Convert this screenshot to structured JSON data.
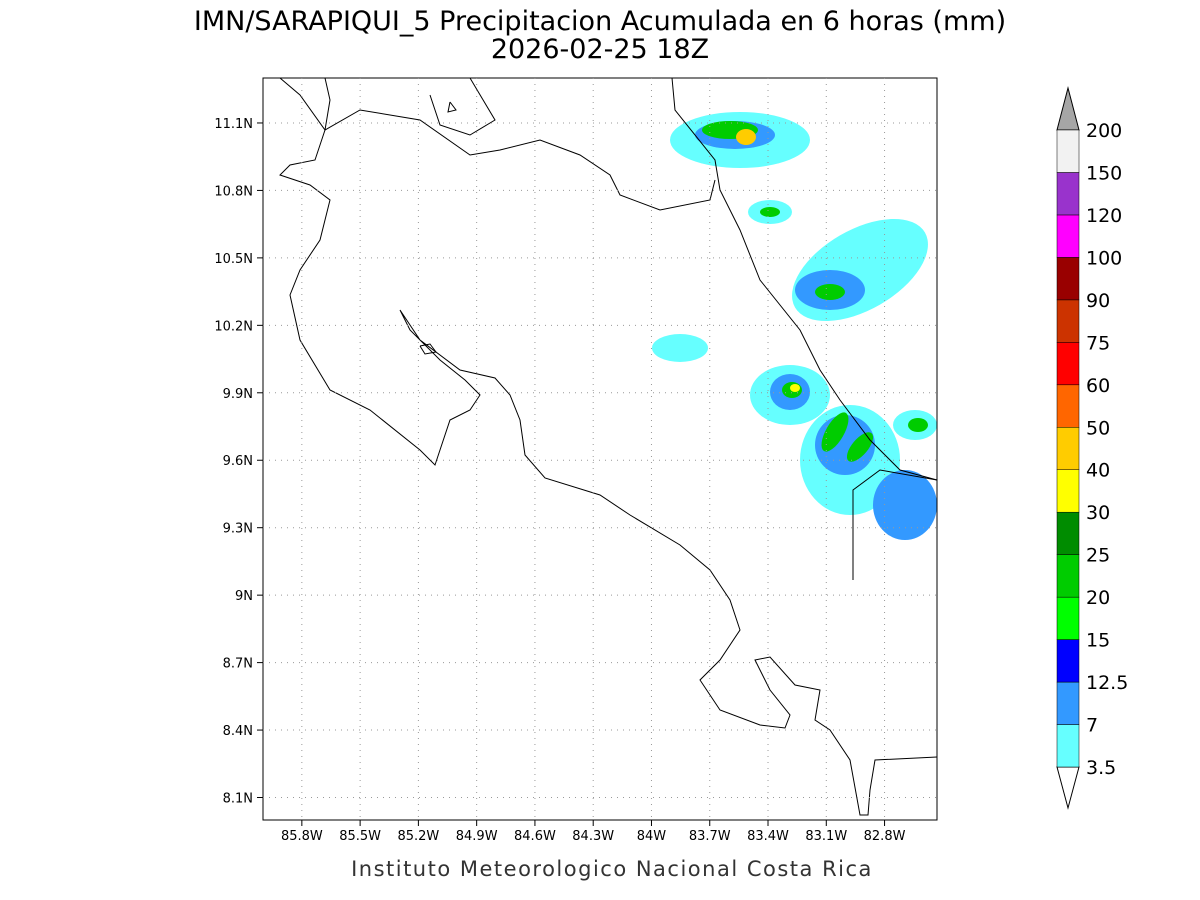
{
  "title": "IMN/SARAPIQUI_5 Precipitacion Acumulada en 6 horas (mm)",
  "subtitle": "2026-02-25 18Z",
  "map": {
    "xlim": [
      -86.0,
      -82.53
    ],
    "ylim": [
      8.0,
      11.3
    ],
    "xticks": [
      {
        "value": -85.8,
        "label": "85.8W"
      },
      {
        "value": -85.5,
        "label": "85.5W"
      },
      {
        "value": -85.2,
        "label": "85.2W"
      },
      {
        "value": -84.9,
        "label": "84.9W"
      },
      {
        "value": -84.6,
        "label": "84.6W"
      },
      {
        "value": -84.3,
        "label": "84.3W"
      },
      {
        "value": -84.0,
        "label": "84W"
      },
      {
        "value": -83.7,
        "label": "83.7W"
      },
      {
        "value": -83.4,
        "label": "83.4W"
      },
      {
        "value": -83.1,
        "label": "83.1W"
      },
      {
        "value": -82.8,
        "label": "82.8W"
      }
    ],
    "yticks": [
      {
        "value": 11.1,
        "label": "11.1N"
      },
      {
        "value": 10.8,
        "label": "10.8N"
      },
      {
        "value": 10.5,
        "label": "10.5N"
      },
      {
        "value": 10.2,
        "label": "10.2N"
      },
      {
        "value": 9.9,
        "label": "9.9N"
      },
      {
        "value": 9.6,
        "label": "9.6N"
      },
      {
        "value": 9.3,
        "label": "9.3N"
      },
      {
        "value": 9.0,
        "label": "9N"
      },
      {
        "value": 8.7,
        "label": "8.7N"
      },
      {
        "value": 8.4,
        "label": "8.4N"
      },
      {
        "value": 8.1,
        "label": "8.1N"
      }
    ],
    "grid": true
  },
  "colorbar": {
    "levels": [
      3.5,
      7,
      12.5,
      15,
      20,
      25,
      30,
      40,
      50,
      60,
      75,
      90,
      100,
      120,
      150,
      200
    ],
    "colors": [
      "#66ffff",
      "#3399ff",
      "#0000ff",
      "#00ff00",
      "#00cc00",
      "#008c00",
      "#ffff00",
      "#ffcc00",
      "#ff6600",
      "#ff0000",
      "#cc3300",
      "#990000",
      "#ff00ff",
      "#9933cc",
      "#f2f2f2"
    ],
    "under_color": "#ffffff",
    "over_color": "#a6a6a6"
  },
  "footer": "Instituto Meteorologico Nacional Costa Rica"
}
